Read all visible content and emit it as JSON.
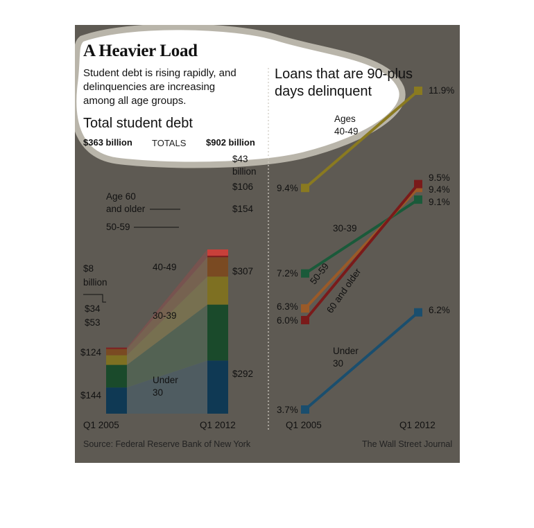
{
  "header": {
    "title": "A Heavier Load",
    "subtitle_lines": [
      "Student debt is rising rapidly, and",
      "delinquencies are increasing",
      "among all age groups."
    ]
  },
  "chart_data": [
    {
      "type": "bar",
      "stacked": true,
      "title": "Total student debt",
      "categories": [
        "Q1 2005",
        "Q1 2012"
      ],
      "totals": {
        "label": "TOTALS",
        "values": [
          "$363 billion",
          "$902 billion"
        ]
      },
      "series": [
        {
          "name": "Under 30",
          "label_lines": [
            "Under",
            "30"
          ],
          "values": [
            144,
            292
          ],
          "value_labels": [
            "$144",
            "$292"
          ],
          "color": "#0f3954"
        },
        {
          "name": "30-39",
          "label_lines": [
            "30-39"
          ],
          "values": [
            124,
            307
          ],
          "value_labels": [
            "$124",
            "$307"
          ],
          "color": "#1a4a2b"
        },
        {
          "name": "40-49",
          "label_lines": [
            "40-49"
          ],
          "values": [
            53,
            154
          ],
          "value_labels": [
            "$53",
            "$154"
          ],
          "color": "#7e7022"
        },
        {
          "name": "50-59",
          "label_lines": [
            "50-59"
          ],
          "values": [
            34,
            106
          ],
          "value_labels": [
            "$34",
            "$106"
          ],
          "color": "#7a4a22"
        },
        {
          "name": "Age 60 and older",
          "label_lines": [
            "Age 60",
            "and older"
          ],
          "values": [
            8,
            43
          ],
          "value_labels": [
            "$8 billion",
            "$43 billion"
          ],
          "color": "#7e2020"
        }
      ],
      "colors_2012": [
        "#0f3954",
        "#1a4a2b",
        "#7e7022",
        "#7a4a22",
        "#7e2020"
      ],
      "top_accent_2012": "#c8403a"
    },
    {
      "type": "line",
      "title_lines": [
        "Loans that are 90-plus",
        "days delinquent"
      ],
      "x": [
        "Q1 2005",
        "Q1 2012"
      ],
      "y_unit": "%",
      "series": [
        {
          "name": "Ages 40-49",
          "label_lines": [
            "Ages",
            "40-49"
          ],
          "values": [
            9.4,
            11.9
          ],
          "value_labels": [
            "9.4%",
            "11.9%"
          ],
          "color": "#8a7a20"
        },
        {
          "name": "30-39",
          "label_lines": [
            "30-39"
          ],
          "values": [
            7.2,
            9.1
          ],
          "value_labels": [
            "7.2%",
            "9.1%"
          ],
          "color": "#1a5a3a"
        },
        {
          "name": "50-59",
          "label_lines": [
            "50-59"
          ],
          "values": [
            6.3,
            9.4
          ],
          "value_labels": [
            "6.3%",
            "9.4%"
          ],
          "color": "#9a5a28"
        },
        {
          "name": "60 and older",
          "label_lines": [
            "60 and older"
          ],
          "values": [
            6.0,
            9.5
          ],
          "value_labels": [
            "6.0%",
            "9.5%"
          ],
          "color": "#7a1a1a"
        },
        {
          "name": "Under 30",
          "label_lines": [
            "Under",
            "30"
          ],
          "values": [
            3.7,
            6.2
          ],
          "value_labels": [
            "3.7%",
            "6.2%"
          ],
          "color": "#1a4e6e"
        }
      ]
    }
  ],
  "footer": {
    "source": "Source: Federal Reserve Bank of New York",
    "credit": "The Wall Street Journal"
  }
}
